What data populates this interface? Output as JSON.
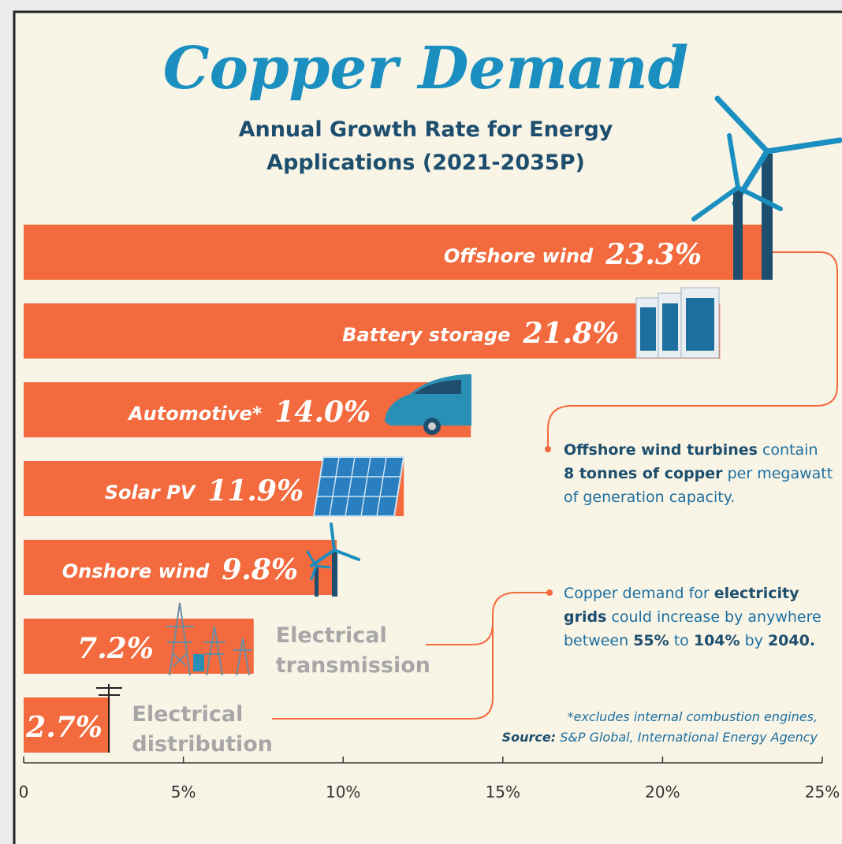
{
  "chart_data": {
    "type": "bar",
    "orientation": "horizontal",
    "title": "Copper Demand",
    "subtitle": [
      "Annual Growth Rate for Energy",
      "Applications (2021-2035P)"
    ],
    "categories": [
      "Offshore wind",
      "Battery storage",
      "Automotive*",
      "Solar PV",
      "Onshore wind",
      "Electrical transmission",
      "Electrical distribution"
    ],
    "values": [
      23.3,
      21.8,
      14.0,
      11.9,
      9.8,
      7.2,
      2.7
    ],
    "value_labels": [
      "23.3%",
      "21.8%",
      "14.0%",
      "11.9%",
      "9.8%",
      "7.2%",
      "2.7%"
    ],
    "color": "#f26a3d",
    "xlim": [
      0,
      25
    ],
    "xticks": [
      0,
      {
        "value": 5,
        "label": "5%"
      },
      {
        "value": 10,
        "label": "10%"
      },
      {
        "value": 15,
        "label": "15%"
      },
      {
        "value": 20,
        "label": "20%"
      },
      {
        "value": 25,
        "label": "25%"
      }
    ],
    "annotations": [
      {
        "lines": [
          [
            {
              "text": "Offshore wind turbines",
              "bold": true
            },
            {
              "text": " contain",
              "bold": false
            }
          ],
          [
            {
              "text": "8 tonnes of copper",
              "bold": true
            },
            {
              "text": " per megawatt",
              "bold": false
            }
          ],
          [
            {
              "text": "of generation capacity.",
              "bold": false
            }
          ]
        ]
      },
      {
        "lines": [
          [
            {
              "text": "Copper demand for ",
              "bold": false
            },
            {
              "text": "electricity",
              "bold": true
            }
          ],
          [
            {
              "text": "grids",
              "bold": true
            },
            {
              "text": " could increase by anywhere",
              "bold": false
            }
          ],
          [
            {
              "text": "between ",
              "bold": false
            },
            {
              "text": "55%",
              "bold": true
            },
            {
              "text": " to ",
              "bold": false
            },
            {
              "text": "104%",
              "bold": true
            },
            {
              "text": " by ",
              "bold": false
            },
            {
              "text": "2040.",
              "bold": true
            }
          ]
        ]
      }
    ],
    "notes": [
      [
        {
          "text": "*excludes internal combustion engines,",
          "bold": false
        }
      ],
      [
        {
          "text": "Source:",
          "bold": true
        },
        {
          "text": " S&P Global, ",
          "bold": false
        },
        {
          "text": "International Energy Agency",
          "bold": false
        }
      ]
    ]
  }
}
